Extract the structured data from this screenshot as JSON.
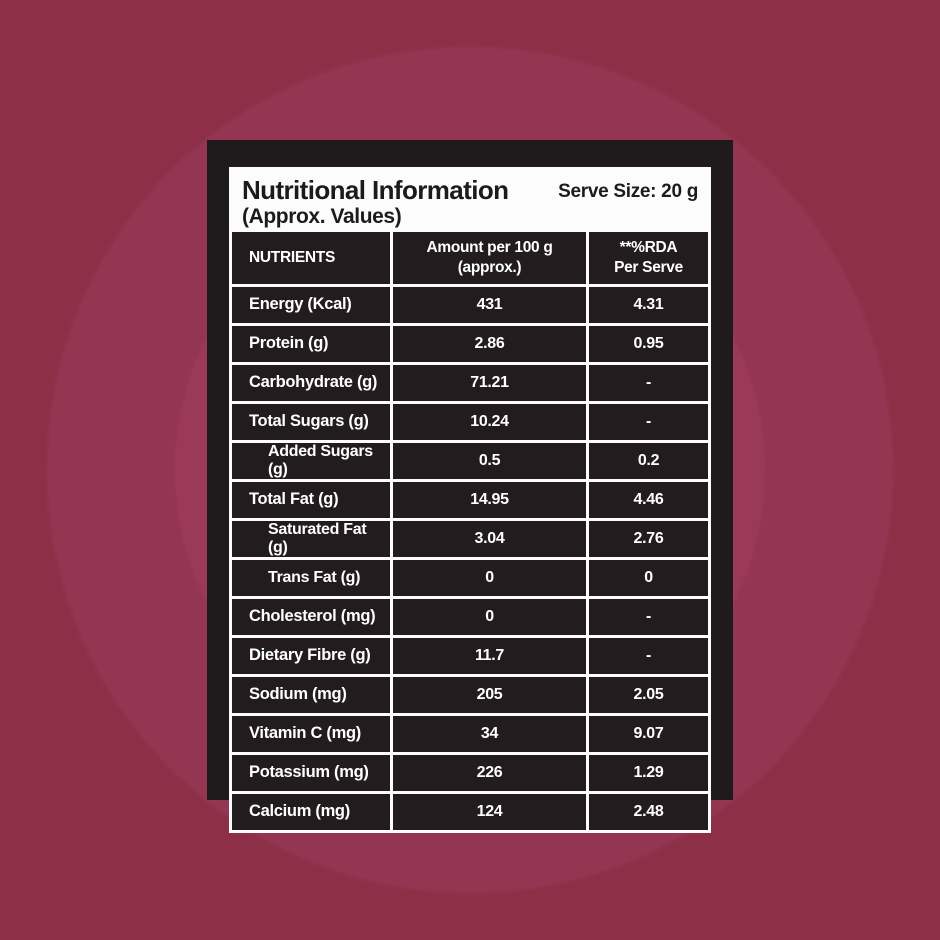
{
  "panel": {
    "title": "Nutritional Information",
    "subtitle": "(Approx. Values)",
    "serve_size": "Serve Size: 20 g"
  },
  "table": {
    "headers": {
      "nutrients": "NUTRIENTS",
      "amount": "Amount per 100 g\n(approx.)",
      "rda": "**%RDA\nPer Serve"
    },
    "rows": [
      {
        "nutrient": "Energy (Kcal)",
        "amount": "431",
        "rda": "4.31",
        "indent": false
      },
      {
        "nutrient": "Protein (g)",
        "amount": "2.86",
        "rda": "0.95",
        "indent": false
      },
      {
        "nutrient": "Carbohydrate (g)",
        "amount": "71.21",
        "rda": "-",
        "indent": false
      },
      {
        "nutrient": "Total Sugars (g)",
        "amount": "10.24",
        "rda": "-",
        "indent": false
      },
      {
        "nutrient": "Added Sugars (g)",
        "amount": "0.5",
        "rda": "0.2",
        "indent": true
      },
      {
        "nutrient": "Total Fat (g)",
        "amount": "14.95",
        "rda": "4.46",
        "indent": false
      },
      {
        "nutrient": "Saturated Fat (g)",
        "amount": "3.04",
        "rda": "2.76",
        "indent": true
      },
      {
        "nutrient": "Trans Fat (g)",
        "amount": "0",
        "rda": "0",
        "indent": true
      },
      {
        "nutrient": "Cholesterol (mg)",
        "amount": "0",
        "rda": "-",
        "indent": false
      },
      {
        "nutrient": "Dietary Fibre (g)",
        "amount": "11.7",
        "rda": "-",
        "indent": false
      },
      {
        "nutrient": "Sodium (mg)",
        "amount": "205",
        "rda": "2.05",
        "indent": false
      },
      {
        "nutrient": "Vitamin C (mg)",
        "amount": "34",
        "rda": "9.07",
        "indent": false
      },
      {
        "nutrient": "Potassium (mg)",
        "amount": "226",
        "rda": "1.29",
        "indent": false
      },
      {
        "nutrient": "Calcium (mg)",
        "amount": "124",
        "rda": "2.48",
        "indent": false
      }
    ]
  },
  "colors": {
    "background_outer": "#8d2f47",
    "background_ring": "#943551",
    "background_center": "#9a3a56",
    "panel_black": "#1f1a1c",
    "cell_black": "#221c1e",
    "sheet_white": "#fcfcfc",
    "text_dark": "#1d1a1b",
    "text_light": "#ffffff"
  }
}
